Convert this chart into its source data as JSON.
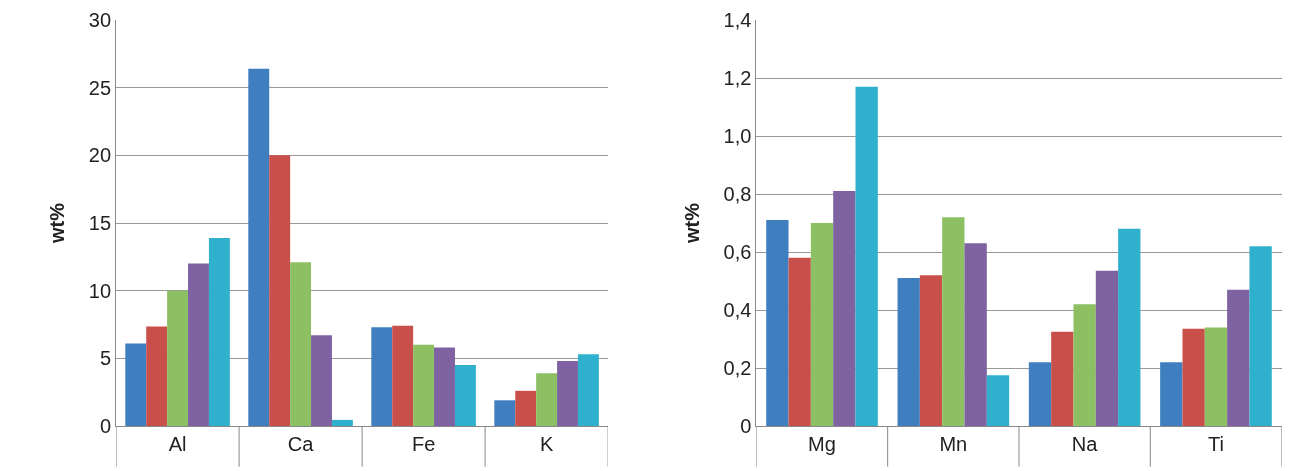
{
  "chart_data": [
    {
      "type": "bar",
      "ylabel": "wt%",
      "categories": [
        "Al",
        "Ca",
        "Fe",
        "K"
      ],
      "ylim": [
        0,
        30
      ],
      "yticks": [
        0,
        5,
        10,
        15,
        20,
        25,
        30
      ],
      "grid": "y",
      "series": [
        {
          "color": "#3f7fc0",
          "values": [
            6.1,
            26.4,
            7.3,
            1.9
          ]
        },
        {
          "color": "#c9504a",
          "values": [
            7.35,
            20.0,
            7.4,
            2.6
          ]
        },
        {
          "color": "#8cc063",
          "values": [
            10.0,
            12.1,
            6.0,
            3.9
          ]
        },
        {
          "color": "#7e62a2",
          "values": [
            12.0,
            6.7,
            5.8,
            4.8
          ]
        },
        {
          "color": "#2fb0cc",
          "values": [
            13.9,
            0.45,
            4.5,
            5.3
          ]
        }
      ]
    },
    {
      "type": "bar",
      "ylabel": "wt%",
      "categories": [
        "Mg",
        "Mn",
        "Na",
        "Ti"
      ],
      "ylim": [
        0,
        1.4
      ],
      "yticks": [
        {
          "value": 0,
          "label": "0"
        },
        {
          "value": 0.2,
          "label": "0,2"
        },
        {
          "value": 0.4,
          "label": "0,4"
        },
        {
          "value": 0.6,
          "label": "0,6"
        },
        {
          "value": 0.8,
          "label": "0,8"
        },
        {
          "value": 1.0,
          "label": "1,0"
        },
        {
          "value": 1.2,
          "label": "1,2"
        },
        {
          "value": 1.4,
          "label": "1,4"
        }
      ],
      "grid": "y",
      "series": [
        {
          "color": "#3f7fc0",
          "values": [
            0.71,
            0.51,
            0.22,
            0.22
          ]
        },
        {
          "color": "#c9504a",
          "values": [
            0.58,
            0.52,
            0.325,
            0.335
          ]
        },
        {
          "color": "#8cc063",
          "values": [
            0.7,
            0.72,
            0.42,
            0.34
          ]
        },
        {
          "color": "#7e62a2",
          "values": [
            0.81,
            0.63,
            0.535,
            0.47
          ]
        },
        {
          "color": "#2fb0cc",
          "values": [
            1.17,
            0.175,
            0.68,
            0.62
          ]
        }
      ]
    }
  ]
}
